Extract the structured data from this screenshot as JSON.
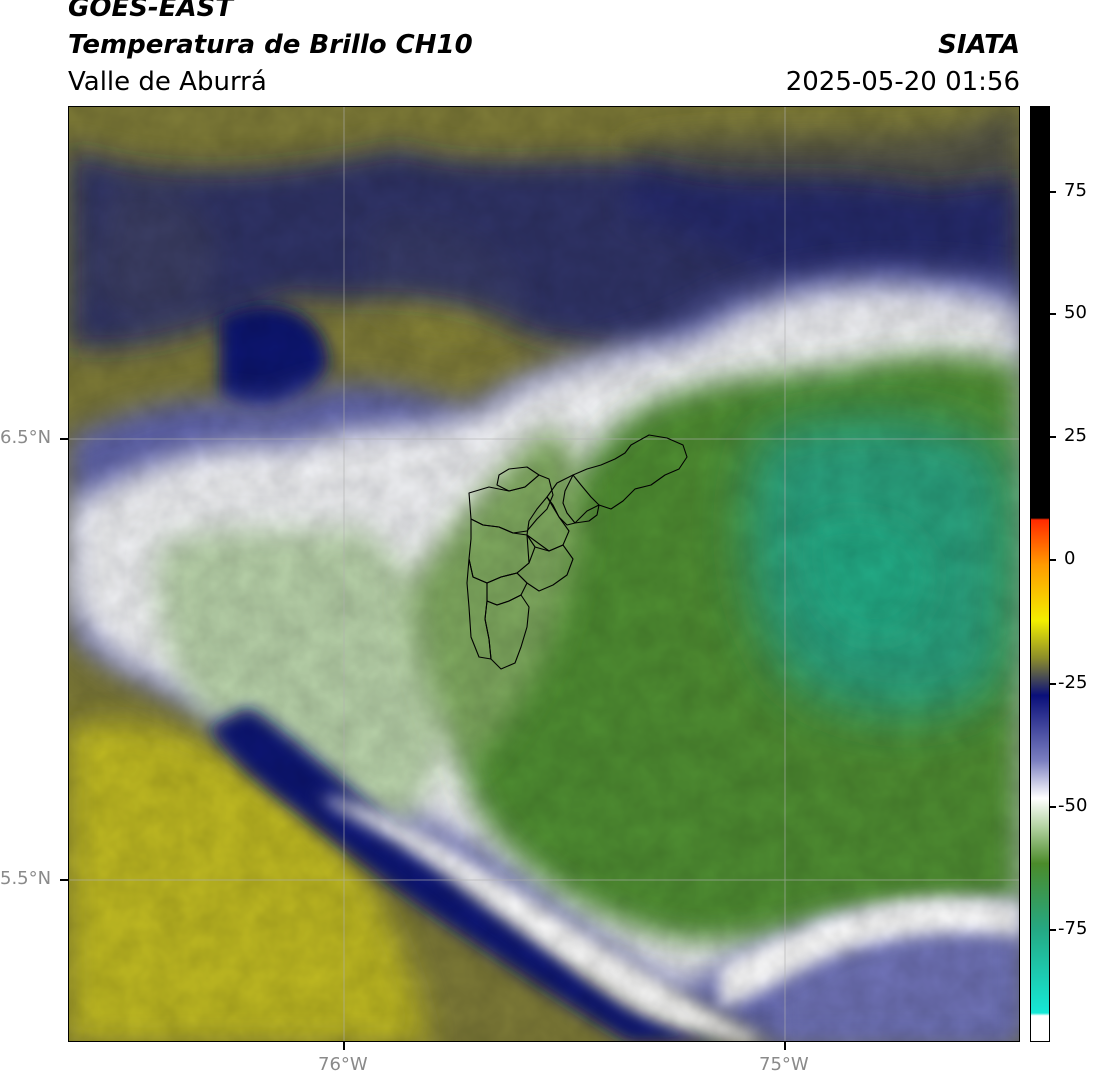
{
  "header": {
    "satellite": "GOES-EAST",
    "product": "Temperatura de Brillo CH10",
    "organization": "SIATA",
    "region": "Valle de Aburrá",
    "datetime": "2025-05-20 01:56"
  },
  "axes": {
    "latitude_ticks": [
      "6.5°N",
      "5.5°N"
    ],
    "longitude_ticks": [
      "76°W",
      "75°W"
    ]
  },
  "colorbar": {
    "ticks": [
      "75",
      "50",
      "25",
      "0",
      "-25",
      "-50",
      "-75"
    ],
    "colors": {
      "hot": "#000000",
      "red": "#ff2a00",
      "orange": "#ff9a00",
      "yellow": "#f2ee00",
      "olive": "#8c8c2a",
      "navy": "#0a0f7a",
      "blue_grey": "#7b7fc0",
      "white": "#ffffff",
      "light_green": "#b5d4a4",
      "green": "#4b8b2a",
      "teal": "#25a882",
      "cyan": "#16e8d6"
    }
  },
  "map_colors": {
    "cold_cloud_green": "#4a8a2b",
    "core_teal": "#2aa37f",
    "cloud_edge_white": "#f4f6f4",
    "navy_band": "#10187a",
    "periwinkle": "#7175b8",
    "olive_bg": "#8a8730",
    "yellow_bg": "#c8c21e",
    "dark_olive": "#505044"
  }
}
